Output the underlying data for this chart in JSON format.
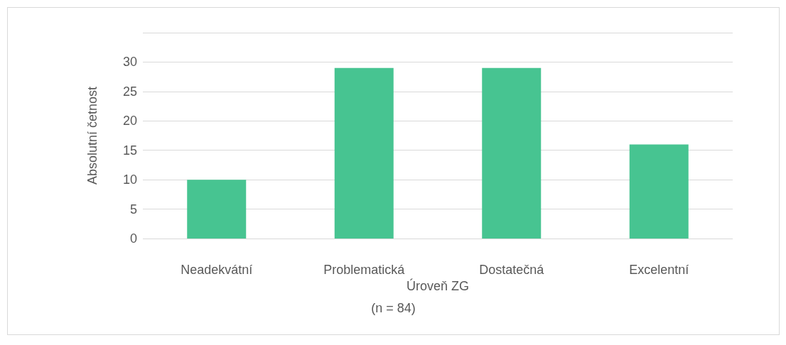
{
  "chart_data": {
    "type": "bar",
    "categories": [
      "Neadekvátní",
      "Problematická",
      "Dostatečná",
      "Excelentní"
    ],
    "values": [
      10,
      29,
      29,
      16
    ],
    "color": "#47c491",
    "xlabel": "Úroveň ZG",
    "ylabel": "Absolutní četnost",
    "annotations": [
      "(n = 84)"
    ],
    "ylim": [
      0,
      35
    ],
    "yticks": [
      0,
      5,
      10,
      15,
      20,
      25,
      30,
      {
        "value": 35,
        "label": null
      }
    ],
    "grid": "y"
  }
}
